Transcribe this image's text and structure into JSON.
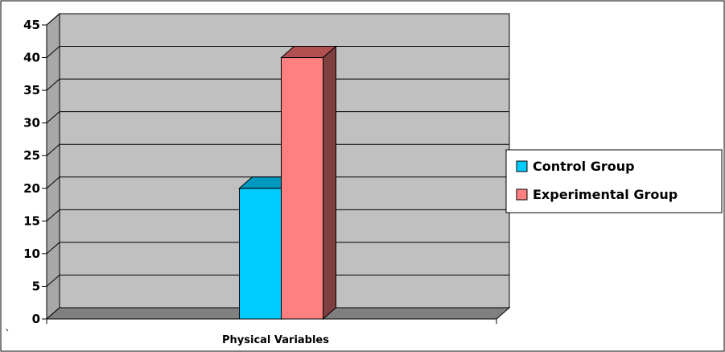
{
  "chart_data": {
    "type": "bar",
    "categories": [
      "Physical Variables"
    ],
    "series": [
      {
        "name": "Control Group",
        "values": [
          20
        ],
        "color": "#00CCFF",
        "top_color": "#0099C0",
        "side_color": "#007799"
      },
      {
        "name": "Experimental Group",
        "values": [
          40
        ],
        "color": "#FF8080",
        "top_color": "#B05050",
        "side_color": "#7F3F3F"
      }
    ],
    "title": "",
    "xlabel": "",
    "ylabel": "",
    "ylim": [
      0,
      45
    ],
    "yticks": [
      0,
      5,
      10,
      15,
      20,
      25,
      30,
      35,
      40,
      45
    ],
    "grid": true,
    "three_d": true,
    "legend_position": "right",
    "wall_color": "#C0C0C0",
    "floor_color": "#808080"
  },
  "stray_mark": "`"
}
